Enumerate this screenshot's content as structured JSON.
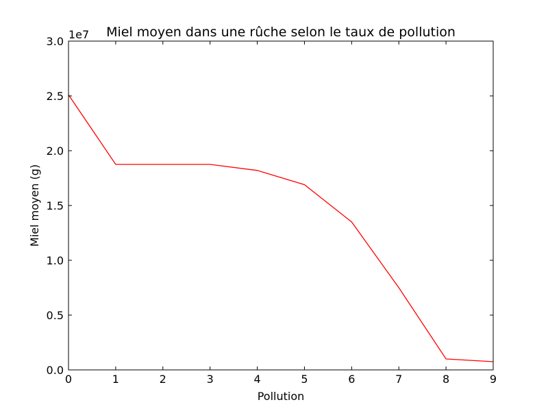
{
  "chart_data": {
    "type": "line",
    "title": "Miel moyen dans une rûche selon le taux de pollution",
    "xlabel": "Pollution",
    "ylabel": "Miel moyen (g)",
    "y_offset_label": "1e7",
    "xlim": [
      0,
      9
    ],
    "ylim": [
      0,
      30000000
    ],
    "x_ticks": [
      0,
      1,
      2,
      3,
      4,
      5,
      6,
      7,
      8,
      9
    ],
    "x_tick_labels": [
      "0",
      "1",
      "2",
      "3",
      "4",
      "5",
      "6",
      "7",
      "8",
      "9"
    ],
    "y_ticks": [
      0,
      5000000,
      10000000,
      15000000,
      20000000,
      25000000,
      30000000
    ],
    "y_tick_labels": [
      "0.0",
      "0.5",
      "1.0",
      "1.5",
      "2.0",
      "2.5",
      "3.0"
    ],
    "grid": false,
    "series": [
      {
        "color": "#ff0000",
        "x": [
          0,
          1,
          2,
          3,
          4,
          5,
          6,
          7,
          8,
          9
        ],
        "y": [
          25100000,
          18750000,
          18750000,
          18750000,
          18200000,
          16900000,
          13500000,
          7500000,
          1000000,
          750000
        ]
      }
    ]
  }
}
